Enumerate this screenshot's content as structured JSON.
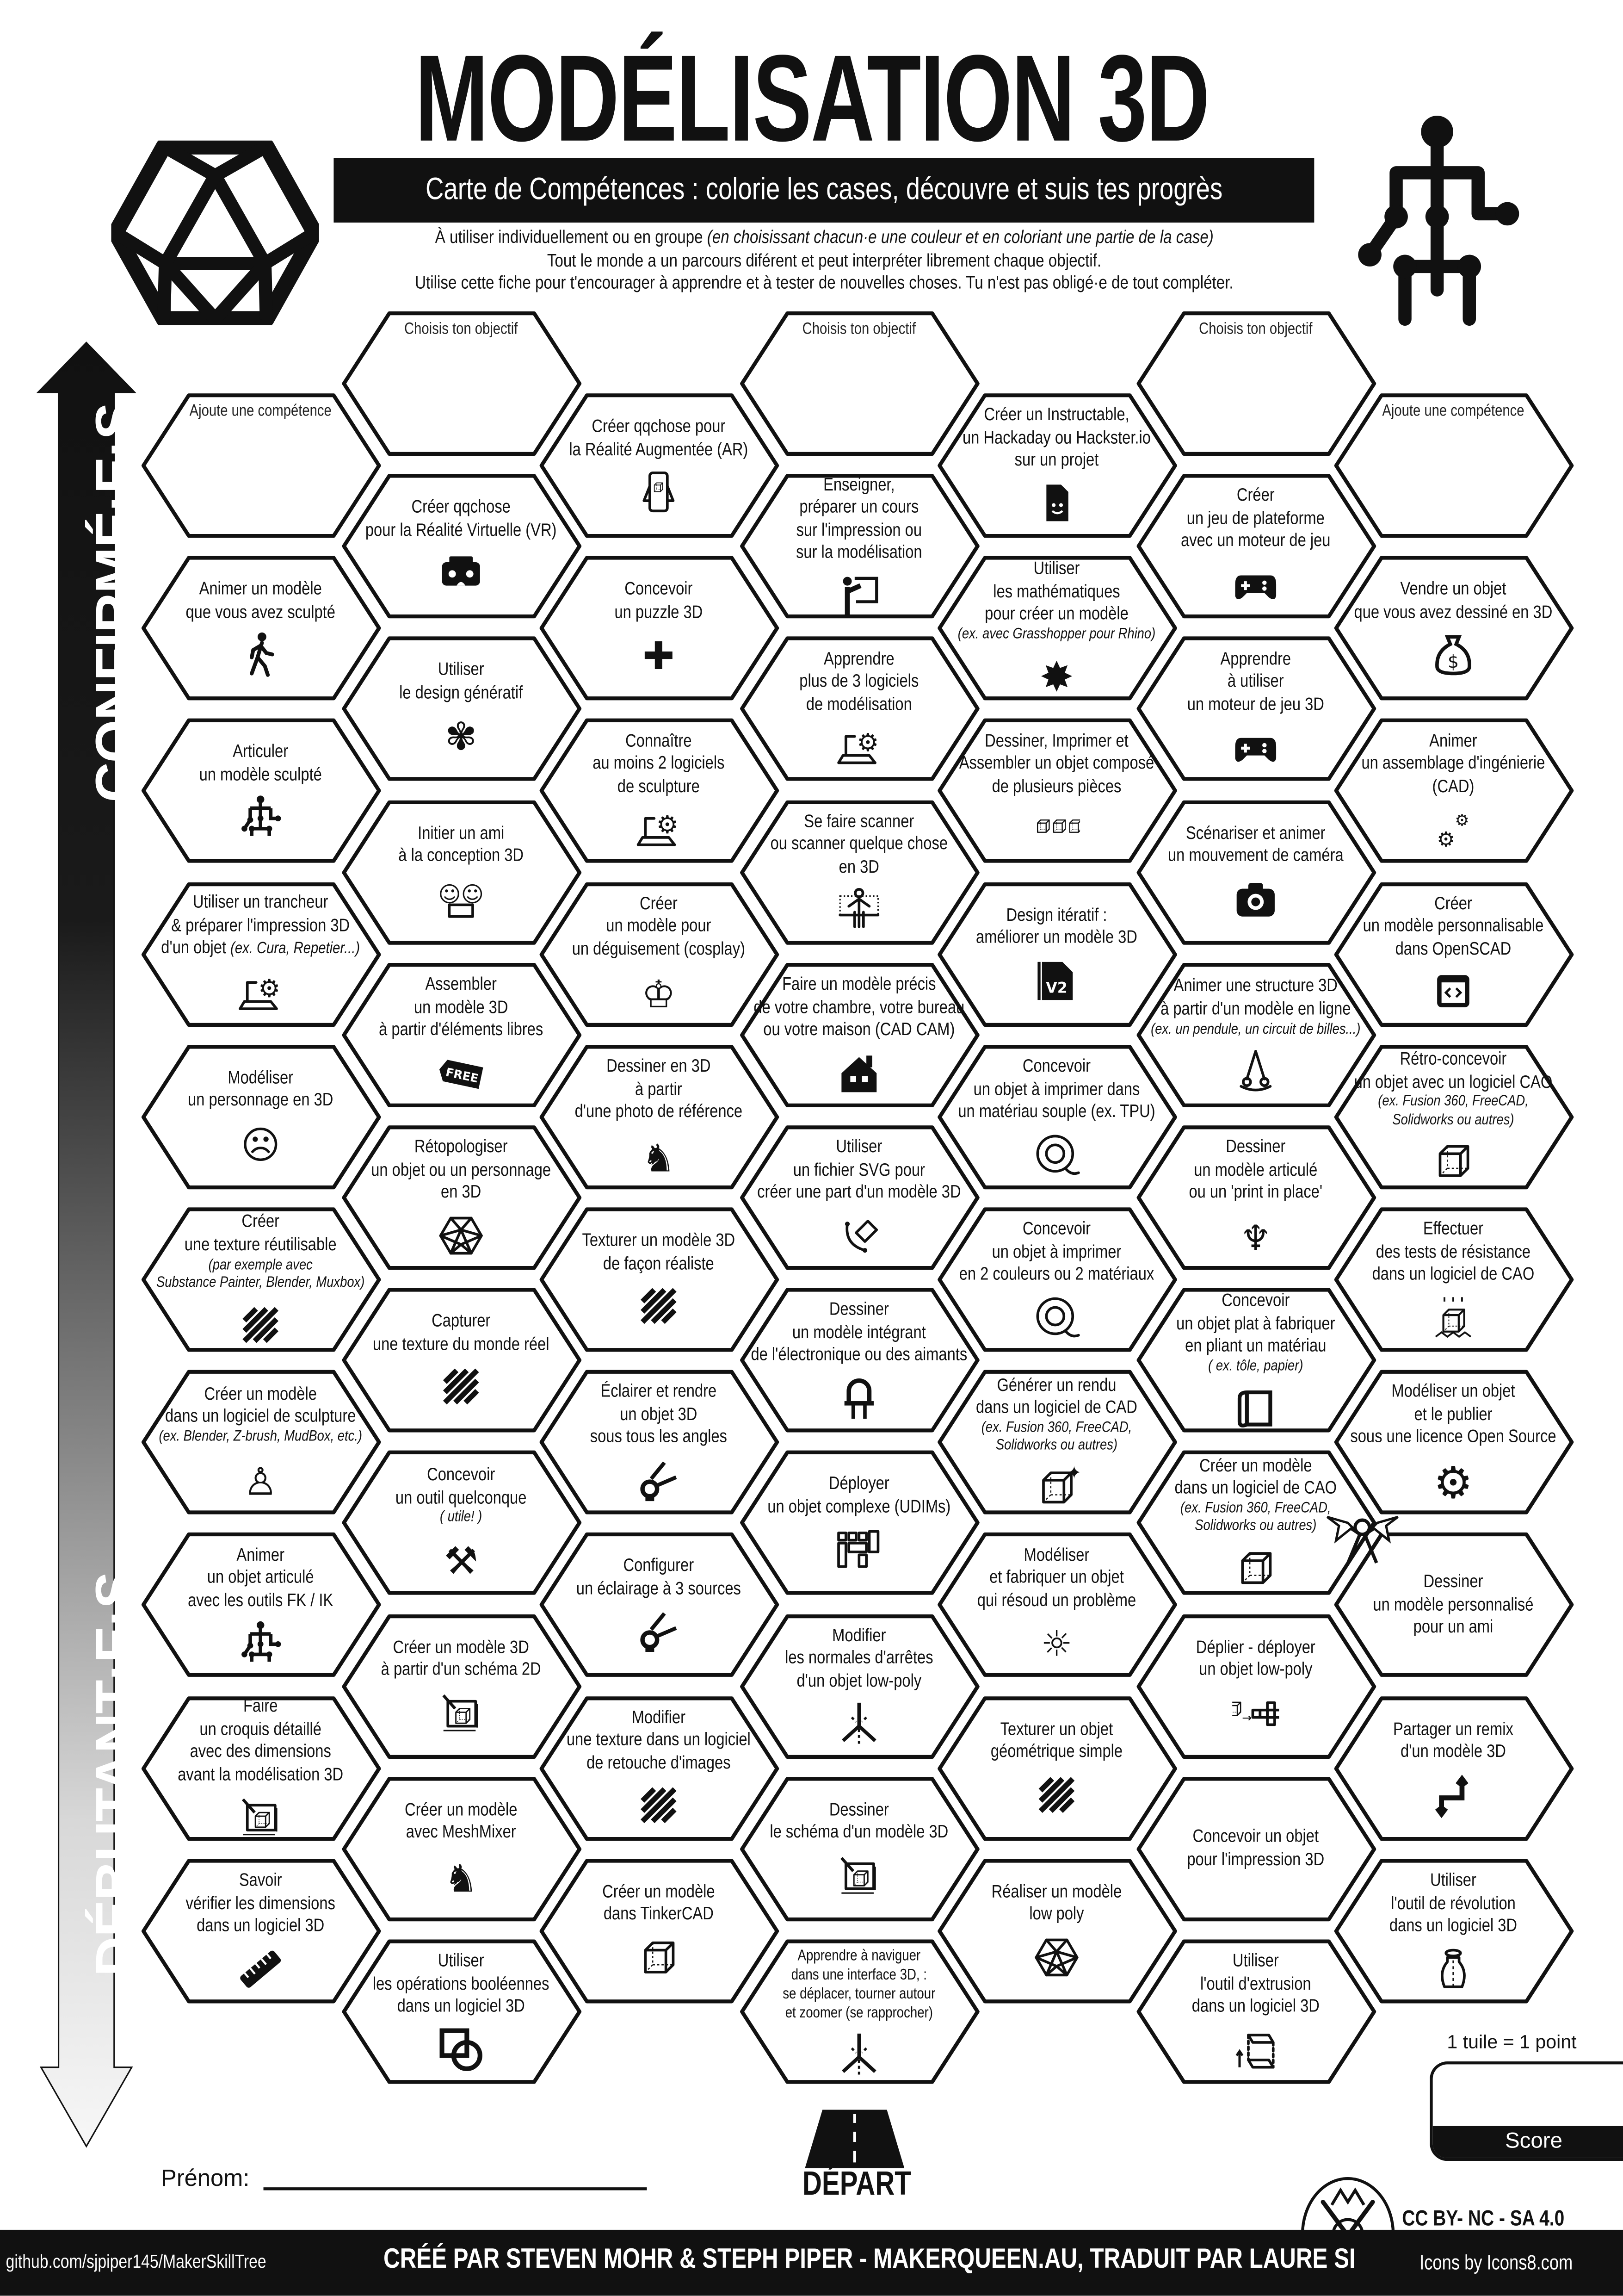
{
  "header": {
    "title": "MODÉLISATION 3D",
    "subtitle": "Carte de Compétences : colorie les cases, découvre et suis tes progrès",
    "intro": [
      {
        "text": "À utiliser individuellement ou en groupe ",
        "italic": "(en choisissant chacun·e une couleur et en coloriant une partie de la case)"
      },
      {
        "text": "Tout le monde a un parcours diférent et peut interpréter librement chaque objectif.",
        "italic": ""
      },
      {
        "text": "Utilise cette fiche pour t'encourager à apprendre et à tester de nouvelles choses. Tu n'est pas obligé·e de tout compléter.",
        "italic": ""
      }
    ],
    "left_logo": "icosahedron-icon",
    "right_logo": "skeleton-icon"
  },
  "side_arrow": {
    "top_label": "CONFIRMÉ·E·S",
    "bottom_label": "DÉBUTANT·E·S"
  },
  "tiles": {
    "columns": [
      [
        {
          "prompt": "Ajoute une compétence"
        },
        {
          "lines": [
            "Animer un modèle",
            "que vous avez sculpté"
          ],
          "icon": "walking-person"
        },
        {
          "lines": [
            "Articuler",
            "un modèle sculpté"
          ],
          "icon": "skeleton"
        },
        {
          "lines": [
            "Utiliser un trancheur",
            "& préparer l'impression 3D",
            "d'un objet"
          ],
          "inline_note": "(ex. Cura, Repetier...)",
          "icon": "laptop-gear"
        },
        {
          "lines": [
            "Modéliser",
            "un personnage en 3D"
          ],
          "icon": "face"
        },
        {
          "lines": [
            "Créer",
            "une texture réutilisable"
          ],
          "notes": [
            "(par exemple avec",
            "Substance Painter, Blender, Muxbox)"
          ],
          "icon": "texture-stripes"
        },
        {
          "lines": [
            "Créer un modèle",
            "dans un logiciel de sculpture"
          ],
          "notes": [
            "(ex. Blender, Z-brush, MudBox, etc.)"
          ],
          "icon": "statue"
        },
        {
          "lines": [
            "Animer",
            "un objet articulé",
            "avec les outils FK / IK"
          ],
          "icon": "skeleton"
        },
        {
          "lines": [
            "Faire",
            "un croquis détaillé",
            "avec des dimensions",
            "avant la modélisation 3D"
          ],
          "icon": "blueprint"
        },
        {
          "lines": [
            "Savoir",
            "vérifier les dimensions",
            "dans un logiciel 3D"
          ],
          "icon": "ruler"
        }
      ],
      [
        {
          "prompt": "Choisis ton objectif"
        },
        {
          "lines": [
            "Créer qqchose",
            "pour la Réalité Virtuelle (VR)"
          ],
          "icon": "vr-headset"
        },
        {
          "lines": [
            "Utiliser",
            "le design génératif"
          ],
          "icon": "brain"
        },
        {
          "lines": [
            "Initier un ami",
            "à la conception 3D"
          ],
          "icon": "people-laptop"
        },
        {
          "lines": [
            "Assembler",
            "un modèle 3D",
            "à partir d'éléments libres"
          ],
          "icon": "free-tag"
        },
        {
          "lines": [
            "Rétopologiser",
            "un objet ou un personnage",
            "en 3D"
          ],
          "icon": "polyhedron"
        },
        {
          "lines": [
            "Capturer",
            "une texture du monde réel"
          ],
          "icon": "texture-stripes"
        },
        {
          "lines": [
            "Concevoir",
            "un outil quelconque"
          ],
          "notes": [
            "( utile! )"
          ],
          "icon": "tools"
        },
        {
          "lines": [
            "Créer un modèle 3D",
            "à partir d'un schéma 2D"
          ],
          "icon": "blueprint"
        },
        {
          "lines": [
            "Créer un modèle",
            "avec MeshMixer"
          ],
          "icon": "rabbit"
        },
        {
          "lines": [
            "Utiliser",
            "les opérations booléennes",
            "dans un logiciel 3D"
          ],
          "icon": "boolean"
        }
      ],
      [
        {
          "lines": [
            "Créer qqchose pour",
            "la Réalité Augmentée (AR)"
          ],
          "icon": "phone-ar"
        },
        {
          "lines": [
            "Concevoir",
            "un puzzle 3D"
          ],
          "icon": "puzzle"
        },
        {
          "lines": [
            "Connaître",
            "au moins 2 logiciels",
            "de sculpture"
          ],
          "icon": "laptop-gear"
        },
        {
          "lines": [
            "Créer",
            "un modèle pour",
            "un déguisement (cosplay)"
          ],
          "icon": "costume"
        },
        {
          "lines": [
            "Dessiner en 3D",
            "à partir",
            "d'une photo de référence"
          ],
          "icon": "dog"
        },
        {
          "lines": [
            "Texturer un modèle 3D",
            "de façon réaliste"
          ],
          "icon": "texture-stripes"
        },
        {
          "lines": [
            "Éclairer et rendre",
            "un objet 3D",
            "sous tous les angles"
          ],
          "icon": "spotlight"
        },
        {
          "lines": [
            "Configurer",
            "un éclairage à 3 sources"
          ],
          "icon": "spotlight"
        },
        {
          "lines": [
            "Modifier",
            "une texture dans un logiciel",
            "de retouche d'images"
          ],
          "icon": "texture-stripes"
        },
        {
          "lines": [
            "Créer un modèle",
            "dans TinkerCAD"
          ],
          "icon": "cube"
        }
      ],
      [
        {
          "prompt": "Choisis ton objectif"
        },
        {
          "lines": [
            "Enseigner,",
            "préparer un cours",
            "sur l'impression ou",
            "sur la modélisation"
          ],
          "icon": "teacher"
        },
        {
          "lines": [
            "Apprendre",
            "plus de 3 logiciels",
            "de modélisation"
          ],
          "icon": "laptop-gear"
        },
        {
          "lines": [
            "Se faire scanner",
            "ou scanner quelque chose",
            "en 3D"
          ],
          "icon": "body-scan"
        },
        {
          "lines": [
            "Faire un modèle précis",
            "de votre chambre, votre bureau",
            "ou votre maison (CAD CAM)"
          ],
          "icon": "house"
        },
        {
          "lines": [
            "Utiliser",
            "un fichier SVG pour",
            "créer une part d'un modèle 3D"
          ],
          "icon": "pen-tool"
        },
        {
          "lines": [
            "Dessiner",
            "un modèle intégrant",
            "de l'électronique ou des aimants"
          ],
          "icon": "led"
        },
        {
          "lines": [
            "Déployer",
            "un objet complexe (UDIMs)"
          ],
          "icon": "udim-layout"
        },
        {
          "lines": [
            "Modifier",
            "les normales d'arrêtes",
            "d'un objet low-poly"
          ],
          "icon": "normals"
        },
        {
          "lines": [
            "Dessiner",
            "le schéma d'un modèle 3D"
          ],
          "icon": "blueprint"
        },
        {
          "lines": [
            "Apprendre à naviguer",
            "dans une interface 3D, :",
            "se déplacer, tourner autour",
            "et zoomer (se rapprocher)"
          ],
          "icon": "normals"
        }
      ],
      [
        {
          "lines": [
            "Créer un Instructable,",
            "un Hackaday ou Hackster.io",
            "sur un projet"
          ],
          "icon": "file-smile"
        },
        {
          "lines": [
            "Utiliser",
            "les mathématiques",
            "pour créer un modèle"
          ],
          "notes": [
            "(ex. avec Grasshopper pour Rhino)"
          ],
          "icon": "fractal"
        },
        {
          "lines": [
            "Dessiner, Imprimer et",
            "Assembler un objet composé",
            "de plusieurs pièces"
          ],
          "icon": "three-cubes"
        },
        {
          "lines": [
            "Design itératif :",
            "améliorer un modèle 3D"
          ],
          "icon": "file-v2"
        },
        {
          "lines": [
            "Concevoir",
            "un objet à imprimer dans",
            "un matériau souple (ex. TPU)"
          ],
          "icon": "filament"
        },
        {
          "lines": [
            "Concevoir",
            "un objet à imprimer",
            "en 2 couleurs ou 2 matériaux"
          ],
          "icon": "filament"
        },
        {
          "lines": [
            "Générer un rendu",
            "dans un logiciel de CAD"
          ],
          "notes": [
            "(ex. Fusion 360, FreeCAD,",
            "Solidworks ou autres)"
          ],
          "icon": "cube-sparkle"
        },
        {
          "lines": [
            "Modéliser",
            "et fabriquer un objet",
            "qui résoud un problème"
          ],
          "icon": "light-bulb"
        },
        {
          "lines": [
            "Texturer un objet",
            "géométrique simple"
          ],
          "icon": "texture-stripes"
        },
        {
          "lines": [
            "Réaliser un modèle",
            "low poly"
          ],
          "icon": "polyhedron"
        }
      ],
      [
        {
          "prompt": "Choisis ton objectif"
        },
        {
          "lines": [
            "Créer",
            "un jeu de plateforme",
            "avec un moteur de jeu"
          ],
          "icon": "gamepad"
        },
        {
          "lines": [
            "Apprendre",
            "à utiliser",
            "un moteur de jeu 3D"
          ],
          "icon": "gamepad"
        },
        {
          "lines": [
            "Scénariser et animer",
            "un mouvement de caméra"
          ],
          "icon": "camera"
        },
        {
          "lines": [
            "Animer une structure 3D",
            "à partir d'un modèle en ligne"
          ],
          "notes": [
            "(ex. un pendule, un circuit de billes...)"
          ],
          "icon": "pendulum"
        },
        {
          "lines": [
            "Dessiner",
            "un modèle articulé",
            "ou un 'print in place'"
          ],
          "icon": "dragon"
        },
        {
          "lines": [
            "Concevoir",
            "un objet plat à fabriquer",
            "en pliant un matériau"
          ],
          "notes": [
            "( ex. tôle, papier)"
          ],
          "icon": "paper-fold"
        },
        {
          "lines": [
            "Créer un modèle",
            "dans un logiciel de CAO"
          ],
          "notes": [
            "(ex. Fusion 360, FreeCAD,",
            "Solidworks ou autres)"
          ],
          "icon": "cube"
        },
        {
          "lines": [
            "Déplier - déployer",
            "un objet low-poly"
          ],
          "icon": "unfold-cube"
        },
        {
          "lines": [
            "Concevoir un objet",
            "pour  l'impression 3D"
          ]
        },
        {
          "lines": [
            "Utiliser",
            "l'outil d'extrusion",
            "dans un logiciel 3D"
          ],
          "icon": "extrude"
        }
      ],
      [
        {
          "prompt": "Ajoute une compétence"
        },
        {
          "lines": [
            "Vendre un objet",
            "que vous avez dessiné en 3D"
          ],
          "icon": "money-bag"
        },
        {
          "lines": [
            "Animer",
            "un assemblage d'ingénierie",
            "(CAD)"
          ],
          "icon": "gears"
        },
        {
          "lines": [
            "Créer",
            "un modèle personnalisable",
            "dans OpenSCAD"
          ],
          "icon": "code-window"
        },
        {
          "lines": [
            "Rétro-concevoir",
            "un objet avec un logiciel CAO"
          ],
          "notes": [
            "(ex. Fusion 360, FreeCAD,",
            "Solidworks ou autres)"
          ],
          "icon": "cube"
        },
        {
          "lines": [
            "Effectuer",
            "des tests de résistance",
            "dans un logiciel de CAO"
          ],
          "icon": "stress-test"
        },
        {
          "lines": [
            "Modéliser un objet",
            "et le publier",
            "sous une licence Open Source"
          ],
          "icon": "open-source"
        },
        {
          "lines": [
            "Dessiner",
            "un modèle personnalisé",
            "pour un ami"
          ],
          "icon": "gift-bow"
        },
        {
          "lines": [
            "Partager un remix",
            "d'un modèle 3D"
          ],
          "icon": "remix"
        },
        {
          "lines": [
            "Utiliser",
            "l'outil de révolution",
            "dans un logiciel 3D"
          ],
          "icon": "vase"
        }
      ]
    ]
  },
  "bottom": {
    "name_label": "Prénom:",
    "start_label": "DÉPART",
    "start_icon": "road-icon",
    "points_rule": "1 tuile = 1 point",
    "score_label": "Score",
    "license": "CC BY- NC - SA 4.0",
    "badge_icon": "maker-badge-icon"
  },
  "footer": {
    "github": "github.com/sjpiper145/MakerSkillTree",
    "credits": "CRÉÉ PAR STEVEN MOHR & STEPH PIPER - MAKERQUEEN.AU, TRADUIT PAR LAURE SI",
    "icons_credit": "Icons by Icons8.com"
  },
  "colors": {
    "ink": "#111111",
    "paper": "#ffffff",
    "arrow_bottom": "#f2f2f2"
  }
}
